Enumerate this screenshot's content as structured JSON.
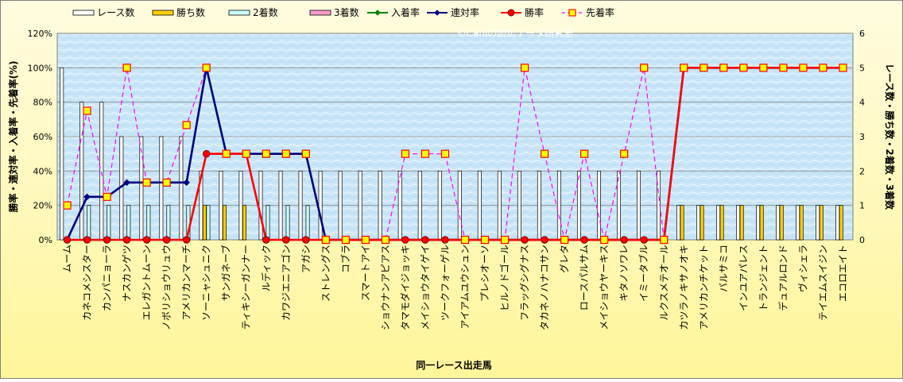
{
  "chart_data": {
    "type": "bar+line",
    "watermark": "©Caniの競馬データ研究室",
    "xlabel": "同一レース出走馬",
    "ylabel_left": "勝率・連対率・入着率・先着率(%)",
    "ylabel_right": "レース数・勝ち数・2着数・3着数",
    "y_left": {
      "min": 0,
      "max": 120,
      "step": 20,
      "suffix": "%"
    },
    "y_right": {
      "min": 0,
      "max": 6,
      "step": 1
    },
    "legend": [
      {
        "key": "races",
        "label": "レース数",
        "kind": "bar",
        "color": "#ffffff"
      },
      {
        "key": "wins",
        "label": "勝ち数",
        "kind": "bar",
        "color": "#ffd000"
      },
      {
        "key": "seconds",
        "label": "2着数",
        "kind": "bar",
        "color": "#ccffff"
      },
      {
        "key": "thirds",
        "label": "3着数",
        "kind": "bar",
        "color": "#ff99cc"
      },
      {
        "key": "place_rate",
        "label": "入着率",
        "kind": "line",
        "color": "#008000",
        "marker": "diamond"
      },
      {
        "key": "rentai_rate",
        "label": "連対率",
        "kind": "line",
        "color": "#000080",
        "marker": "diamond"
      },
      {
        "key": "win_rate",
        "label": "勝率",
        "kind": "line",
        "color": "#ff0000",
        "marker": "circle"
      },
      {
        "key": "senchaku_rate",
        "label": "先着率",
        "kind": "dashline",
        "color": "#ff00ff",
        "marker": "square"
      }
    ],
    "categories": [
      "ムーム",
      "カネコメシスター",
      "カンパニョーラ",
      "ナスカンゲツ",
      "エレガントムーン",
      "ノボリショウリュウ",
      "アメリカンマーチ",
      "ソーニャシュニク",
      "サンガネーブ",
      "ティキシーガンナー",
      "ルディック",
      "カワジエニアゴン",
      "アガシ",
      "ストレングス",
      "コブラ",
      "スマートアイ",
      "ショウナンアピアス",
      "タマモダイジョッキ",
      "メイショウタイゲイ",
      "ツークフォーゲル",
      "アイアムユウシュン",
      "プレシオーソ",
      "ヒルノドゴール",
      "フラッグシグナス",
      "タカネノハナコサン",
      "グレタ",
      "ロースパルサム",
      "メイショウヤーキス",
      "キタノソワレ",
      "イミータブル",
      "ルクスメテオール",
      "カツラノキサノオキ",
      "アメリカンチケット",
      "バルサミコ",
      "インユアパレス",
      "トランジェント",
      "デュアルロンド",
      "ヴィシェラ",
      "テイエムスイジン",
      "エコロエイト"
    ],
    "series": {
      "races": [
        5,
        4,
        4,
        3,
        3,
        3,
        3,
        2,
        2,
        2,
        2,
        2,
        2,
        2,
        2,
        2,
        2,
        2,
        2,
        2,
        2,
        2,
        2,
        2,
        2,
        2,
        2,
        2,
        2,
        2,
        2,
        1,
        1,
        1,
        1,
        1,
        1,
        1,
        1,
        1
      ],
      "wins": [
        0,
        0,
        0,
        0,
        0,
        0,
        0,
        1,
        1,
        1,
        0,
        0,
        0,
        0,
        0,
        0,
        0,
        0,
        0,
        0,
        0,
        0,
        0,
        0,
        0,
        0,
        0,
        0,
        0,
        0,
        0,
        1,
        1,
        1,
        1,
        1,
        1,
        1,
        1,
        1
      ],
      "seconds": [
        0,
        1,
        1,
        1,
        1,
        1,
        1,
        1,
        0,
        0,
        1,
        1,
        1,
        0,
        0,
        0,
        0,
        0,
        0,
        0,
        0,
        0,
        0,
        0,
        0,
        0,
        0,
        0,
        0,
        0,
        0,
        0,
        0,
        0,
        0,
        0,
        0,
        0,
        0,
        0
      ],
      "thirds": [
        0,
        0,
        0,
        0,
        0,
        0,
        0,
        0,
        0,
        0,
        0,
        0,
        0,
        0,
        0,
        0,
        0,
        0,
        0,
        0,
        0,
        0,
        0,
        0,
        0,
        0,
        0,
        0,
        0,
        0,
        0,
        0,
        0,
        0,
        0,
        0,
        0,
        0,
        0,
        0
      ],
      "win_rate": [
        0,
        0,
        0,
        0,
        0,
        0,
        0,
        50,
        50,
        50,
        0,
        0,
        0,
        0,
        0,
        0,
        0,
        0,
        0,
        0,
        0,
        0,
        0,
        0,
        0,
        0,
        0,
        0,
        0,
        0,
        0,
        100,
        100,
        100,
        100,
        100,
        100,
        100,
        100,
        100
      ],
      "rentai_rate": [
        0,
        25,
        25,
        33.3,
        33.3,
        33.3,
        33.3,
        100,
        50,
        50,
        50,
        50,
        50,
        0,
        0,
        0,
        0,
        0,
        0,
        0,
        0,
        0,
        0,
        0,
        0,
        0,
        0,
        0,
        0,
        0,
        0,
        100,
        100,
        100,
        100,
        100,
        100,
        100,
        100,
        100
      ],
      "place_rate": [
        0,
        25,
        25,
        33.3,
        33.3,
        33.3,
        33.3,
        100,
        50,
        50,
        50,
        50,
        50,
        0,
        0,
        0,
        0,
        0,
        0,
        0,
        0,
        0,
        0,
        0,
        0,
        0,
        0,
        0,
        0,
        0,
        0,
        100,
        100,
        100,
        100,
        100,
        100,
        100,
        100,
        100
      ],
      "senchaku_rate": [
        20,
        75,
        25,
        100,
        33.3,
        33.3,
        66.7,
        100,
        50,
        50,
        50,
        50,
        50,
        0,
        0,
        0,
        0,
        50,
        50,
        50,
        0,
        0,
        0,
        100,
        50,
        0,
        50,
        0,
        50,
        100,
        0,
        100,
        100,
        100,
        100,
        100,
        100,
        100,
        100,
        100
      ]
    }
  }
}
